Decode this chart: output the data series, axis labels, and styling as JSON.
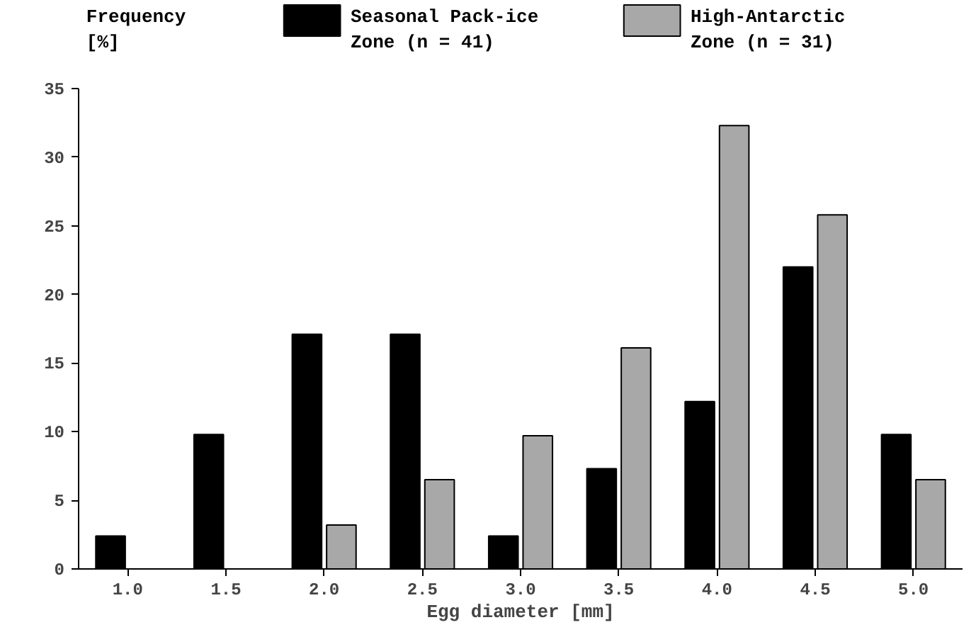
{
  "chart_data": {
    "type": "bar",
    "xlabel": "Egg diameter [mm]",
    "ylabel": "Frequency\n[%]",
    "categories": [
      "1.0",
      "1.5",
      "2.0",
      "2.5",
      "3.0",
      "3.5",
      "4.0",
      "4.5",
      "5.0"
    ],
    "series": [
      {
        "name": "Seasonal Pack-ice\nZone (n = 41)",
        "color": "#000000",
        "values": [
          2.4,
          9.8,
          17.1,
          17.1,
          2.4,
          7.3,
          12.2,
          22.0,
          9.8
        ]
      },
      {
        "name": "High-Antarctic\nZone (n = 31)",
        "color": "#a8a8a8",
        "values": [
          null,
          null,
          3.2,
          6.5,
          9.7,
          16.1,
          32.3,
          25.8,
          6.5
        ]
      }
    ],
    "ylim": [
      0,
      35
    ],
    "yticks": [
      0,
      5,
      10,
      15,
      20,
      25,
      30,
      35
    ],
    "grid": false,
    "legend": "top"
  }
}
